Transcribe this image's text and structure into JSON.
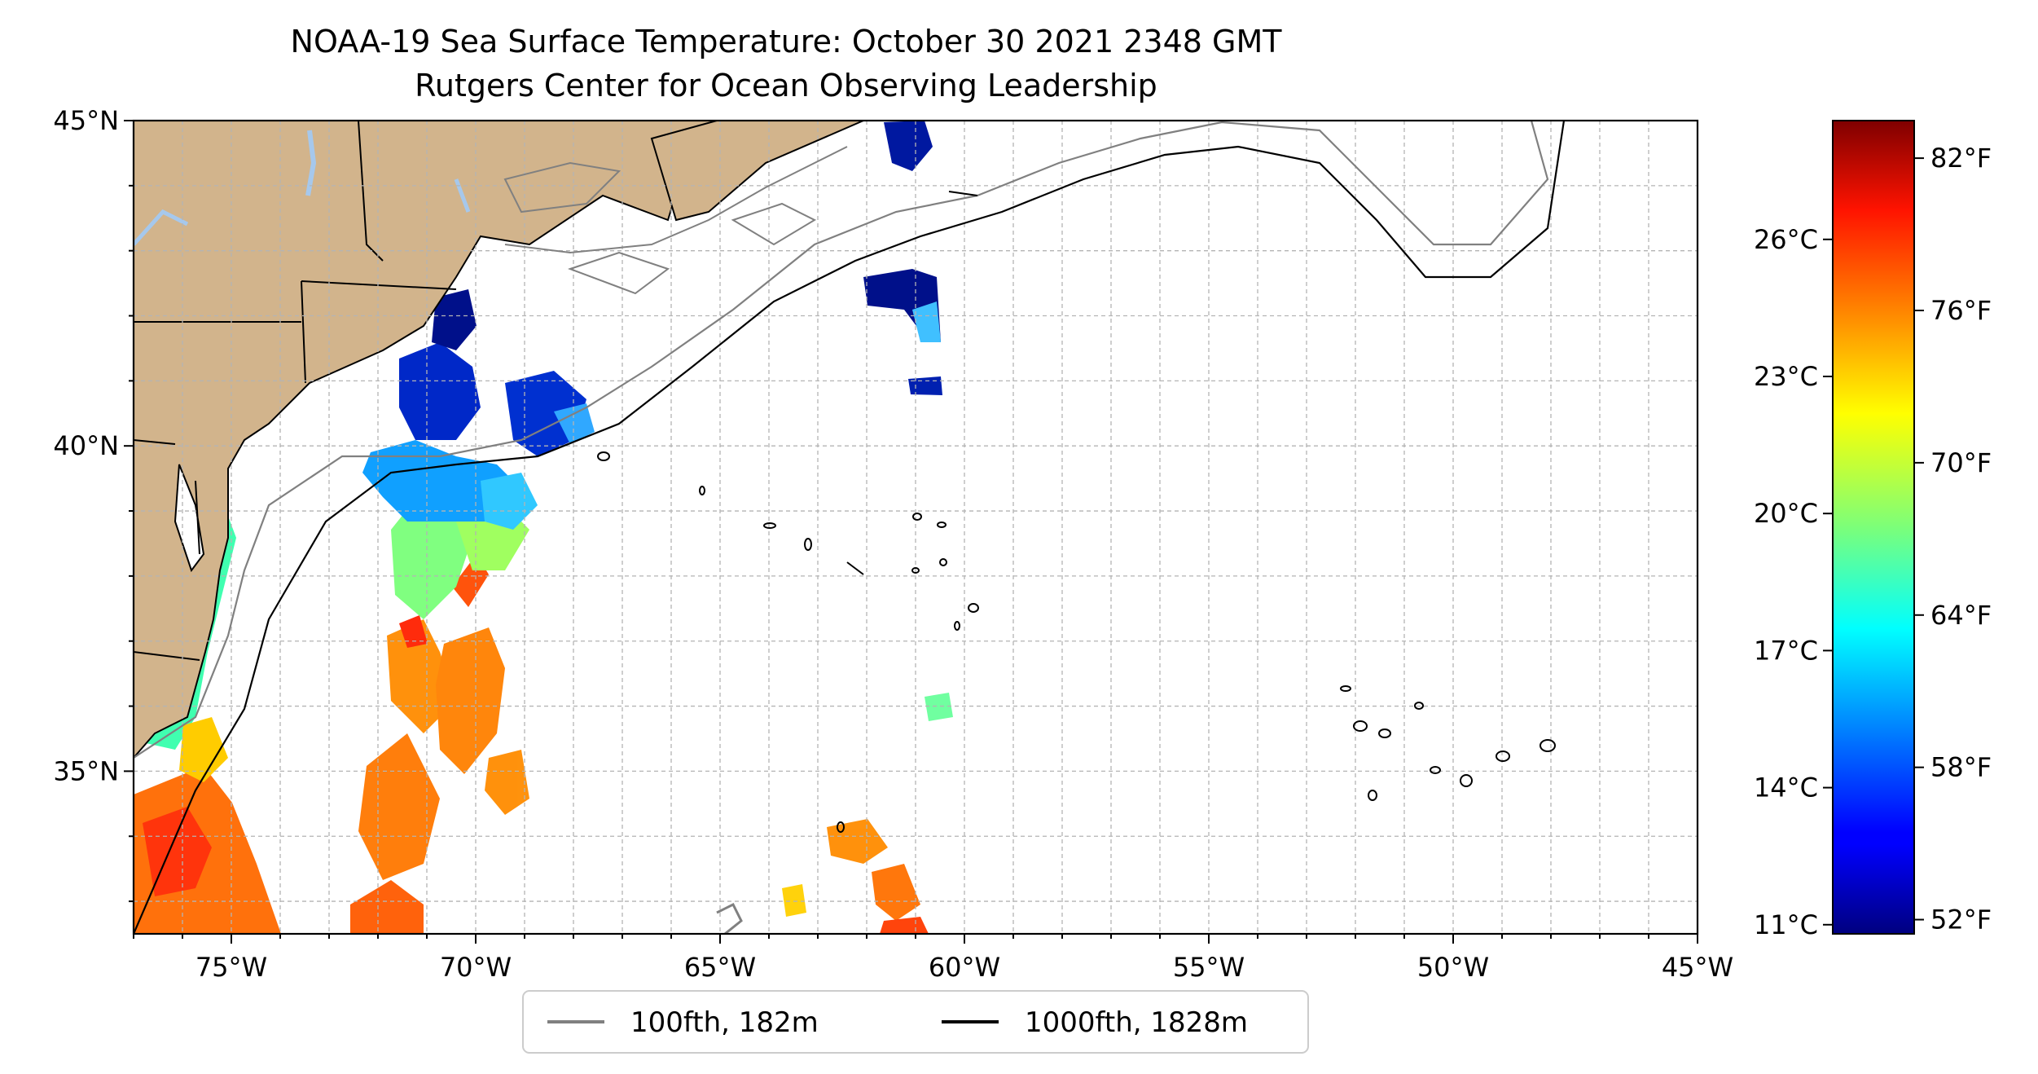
{
  "title": "NOAA-19 Sea Surface Temperature: October 30 2021 2348 GMT",
  "subtitle": "Rutgers Center for Ocean Observing Leadership",
  "map": {
    "lon_range": [
      -77,
      -45
    ],
    "lat_range": [
      32.5,
      45
    ],
    "x_ticks": [
      {
        "value": -75,
        "label": "75°W"
      },
      {
        "value": -70,
        "label": "70°W"
      },
      {
        "value": -65,
        "label": "65°W"
      },
      {
        "value": -60,
        "label": "60°W"
      },
      {
        "value": -55,
        "label": "55°W"
      },
      {
        "value": -50,
        "label": "50°W"
      },
      {
        "value": -45,
        "label": "45°W"
      }
    ],
    "y_ticks": [
      {
        "value": 45,
        "label": "45°N"
      },
      {
        "value": 40,
        "label": "40°N"
      },
      {
        "value": 35,
        "label": "35°N"
      }
    ],
    "grid_lon_step": 1,
    "grid_lat_step": 1,
    "grid": true,
    "colors": {
      "land": "#d2b48c",
      "lakes": "#a6c8ec",
      "isobath_100fth": "#808080",
      "isobath_1000fth": "#000000"
    }
  },
  "legend": {
    "placement": "bottom-center",
    "entries": [
      {
        "label": "100fth, 182m",
        "color": "#808080"
      },
      {
        "label": "1000fth, 1828m",
        "color": "#000000"
      }
    ]
  },
  "colorbar": {
    "colormap": "jet",
    "range_celsius": [
      10.8,
      28.6
    ],
    "celsius_ticks": [
      {
        "value": 11,
        "label": "11°C"
      },
      {
        "value": 14,
        "label": "14°C"
      },
      {
        "value": 17,
        "label": "17°C"
      },
      {
        "value": 20,
        "label": "20°C"
      },
      {
        "value": 23,
        "label": "23°C"
      },
      {
        "value": 26,
        "label": "26°C"
      }
    ],
    "fahrenheit_ticks": [
      {
        "value": 52,
        "label": "52°F"
      },
      {
        "value": 58,
        "label": "58°F"
      },
      {
        "value": 64,
        "label": "64°F"
      },
      {
        "value": 70,
        "label": "70°F"
      },
      {
        "value": 76,
        "label": "76°F"
      },
      {
        "value": 82,
        "label": "82°F"
      }
    ]
  }
}
